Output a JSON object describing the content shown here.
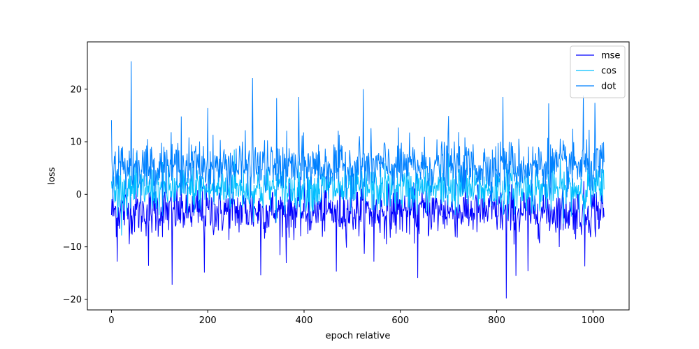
{
  "chart_data": {
    "type": "line",
    "title": "",
    "xlabel": "epoch relative",
    "ylabel": "loss",
    "xlim": [
      -50,
      1075
    ],
    "ylim": [
      -22,
      29
    ],
    "xticks": [
      0,
      200,
      400,
      600,
      800,
      1000
    ],
    "yticks": [
      -20,
      -10,
      0,
      10,
      20
    ],
    "grid": false,
    "legend": "top-right",
    "n_points": 1024,
    "series": [
      {
        "name": "mse",
        "color": "#0000ff",
        "center": -3.2,
        "noise": 2.4,
        "spikes": [
          {
            "x": 126,
            "y": -17.2
          },
          {
            "x": 193,
            "y": -14.9
          },
          {
            "x": 310,
            "y": -15.4
          },
          {
            "x": 363,
            "y": -13.1
          },
          {
            "x": 467,
            "y": -14.7
          },
          {
            "x": 636,
            "y": -15.9
          },
          {
            "x": 820,
            "y": -19.8
          },
          {
            "x": 840,
            "y": -15.5
          },
          {
            "x": 865,
            "y": -14.6
          },
          {
            "x": 983,
            "y": -13.7
          },
          {
            "x": 12,
            "y": -12.8
          },
          {
            "x": 77,
            "y": -13.6
          },
          {
            "x": 545,
            "y": -12.8
          }
        ]
      },
      {
        "name": "cos",
        "color": "#00bfff",
        "center": 1.0,
        "noise": 2.2,
        "spikes": [
          {
            "x": 255,
            "y": 8.5
          },
          {
            "x": 700,
            "y": 7.8
          }
        ]
      },
      {
        "name": "dot",
        "color": "#0080ff",
        "center": 5.3,
        "noise": 2.5,
        "spikes": [
          {
            "x": 41,
            "y": 25.3
          },
          {
            "x": 293,
            "y": 22.1
          },
          {
            "x": 523,
            "y": 20.0
          },
          {
            "x": 200,
            "y": 16.4
          },
          {
            "x": 389,
            "y": 18.5
          },
          {
            "x": 343,
            "y": 18.3
          },
          {
            "x": 813,
            "y": 18.5
          },
          {
            "x": 908,
            "y": 17.3
          },
          {
            "x": 980,
            "y": 18.8
          },
          {
            "x": 1004,
            "y": 17.4
          },
          {
            "x": 145,
            "y": 14.8
          },
          {
            "x": 0,
            "y": 14.1
          },
          {
            "x": 700,
            "y": 14.9
          }
        ]
      }
    ]
  }
}
